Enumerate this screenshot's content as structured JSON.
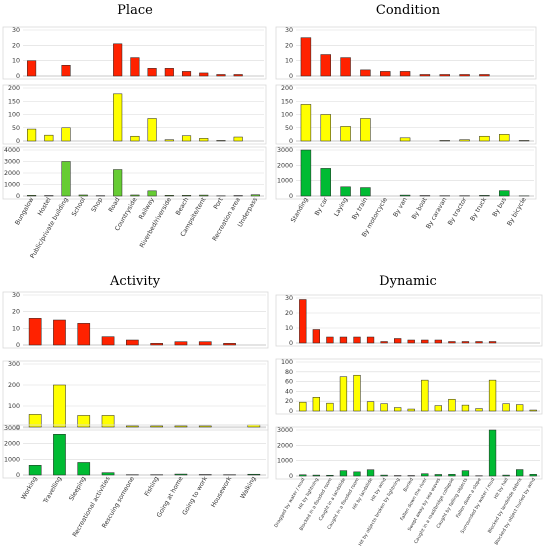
{
  "chart_data": [
    {
      "type": "bar",
      "title": "Place",
      "categories": [
        "Bungalow",
        "Hostel",
        "Public/private building",
        "School",
        "Shop",
        "Road",
        "Countryside",
        "Railway",
        "Riverbed/riverside",
        "Beach",
        "Campsite/tent",
        "Port",
        "Recreation area",
        "Underpass"
      ],
      "panels": [
        {
          "ylim": [
            0,
            30
          ],
          "ticks": [
            0,
            10,
            20,
            30
          ],
          "color": "#ff2200",
          "values": [
            10,
            0,
            7,
            0,
            0,
            21,
            12,
            5,
            5,
            3,
            2,
            1,
            1,
            0
          ]
        },
        {
          "ylim": [
            0,
            200
          ],
          "ticks": [
            0,
            50,
            100,
            150,
            200
          ],
          "color": "#ffff00",
          "values": [
            45,
            22,
            50,
            0,
            0,
            178,
            18,
            85,
            5,
            20,
            10,
            2,
            15,
            0
          ]
        },
        {
          "ylim": [
            0,
            4000
          ],
          "ticks": [
            0,
            1000,
            2000,
            3000,
            4000
          ],
          "color": "#66cc33",
          "values": [
            60,
            40,
            3000,
            90,
            30,
            2300,
            90,
            450,
            60,
            60,
            80,
            20,
            40,
            110
          ]
        }
      ]
    },
    {
      "type": "bar",
      "title": "Condition",
      "categories": [
        "Standing",
        "By car",
        "Laying",
        "By train",
        "By motorcycle",
        "By van",
        "By boat",
        "By caravan",
        "By tractor",
        "By truck",
        "By bus",
        "By bicycle"
      ],
      "panels": [
        {
          "ylim": [
            0,
            30
          ],
          "ticks": [
            0,
            10,
            20,
            30
          ],
          "color": "#ff2200",
          "values": [
            25,
            14,
            12,
            4,
            3,
            3,
            1,
            1,
            1,
            1,
            0,
            0
          ]
        },
        {
          "ylim": [
            0,
            200
          ],
          "ticks": [
            0,
            50,
            100,
            150,
            200
          ],
          "color": "#ffff00",
          "values": [
            138,
            100,
            55,
            85,
            0,
            12,
            0,
            2,
            5,
            18,
            25,
            2
          ]
        },
        {
          "ylim": [
            0,
            3000
          ],
          "ticks": [
            0,
            1000,
            2000,
            3000
          ],
          "color": "#00bb33",
          "values": [
            3000,
            1800,
            600,
            550,
            0,
            60,
            30,
            20,
            20,
            40,
            350,
            10
          ]
        }
      ]
    },
    {
      "type": "bar",
      "title": "Activity",
      "categories": [
        "Working",
        "Travelling",
        "Sleeping",
        "Recreational activities",
        "Rescuing someone",
        "Fishing",
        "Going at home",
        "Going to work",
        "Housework",
        "Walking"
      ],
      "panels": [
        {
          "ylim": [
            0,
            30
          ],
          "ticks": [
            0,
            10,
            20,
            30
          ],
          "color": "#ff2200",
          "values": [
            16,
            15,
            13,
            5,
            3,
            1,
            2,
            2,
            1,
            0
          ]
        },
        {
          "ylim": [
            0,
            300
          ],
          "ticks": [
            0,
            100,
            200,
            300
          ],
          "color": "#ffff00",
          "values": [
            60,
            200,
            55,
            55,
            5,
            5,
            5,
            5,
            0,
            10
          ]
        },
        {
          "ylim": [
            0,
            3000
          ],
          "ticks": [
            0,
            1000,
            2000,
            3000
          ],
          "color": "#00bb33",
          "values": [
            620,
            2600,
            800,
            150,
            20,
            20,
            60,
            30,
            20,
            50
          ]
        }
      ]
    },
    {
      "type": "bar",
      "title": "Dynamic",
      "categories": [
        "Dragged by water / mud",
        "Hit by lightning",
        "Blocked in a flooded room",
        "Caught in a landslide",
        "Caught in a flooded room",
        "Hit by landslide",
        "Hit by wind",
        "Hit by objects broken by lightning",
        "Buried",
        "Fallen down the river",
        "Swept away by sea waves",
        "Caught in a road/bridge collapse",
        "Caught by falling objects",
        "Fallen down a slope",
        "Surrounded by water / mud",
        "Hit by hail",
        "Blocked by landslide debris",
        "Blocked by object hurled by wind"
      ],
      "panels": [
        {
          "ylim": [
            0,
            30
          ],
          "ticks": [
            0,
            10,
            20,
            30
          ],
          "color": "#ff2200",
          "values": [
            29,
            9,
            4,
            4,
            4,
            4,
            1,
            3,
            2,
            2,
            2,
            1,
            1,
            1,
            1,
            0,
            0,
            0
          ]
        },
        {
          "ylim": [
            0,
            100
          ],
          "ticks": [
            0,
            20,
            40,
            60,
            80,
            100
          ],
          "color": "#ffff00",
          "values": [
            18,
            28,
            16,
            70,
            73,
            19,
            15,
            7,
            4,
            63,
            11,
            24,
            12,
            5,
            63,
            15,
            13,
            2
          ]
        },
        {
          "ylim": [
            0,
            3000
          ],
          "ticks": [
            0,
            1000,
            2000,
            3000
          ],
          "color": "#00bb33",
          "values": [
            80,
            60,
            50,
            350,
            270,
            410,
            60,
            30,
            30,
            150,
            100,
            110,
            350,
            20,
            3000,
            60,
            420,
            110
          ]
        }
      ]
    }
  ]
}
